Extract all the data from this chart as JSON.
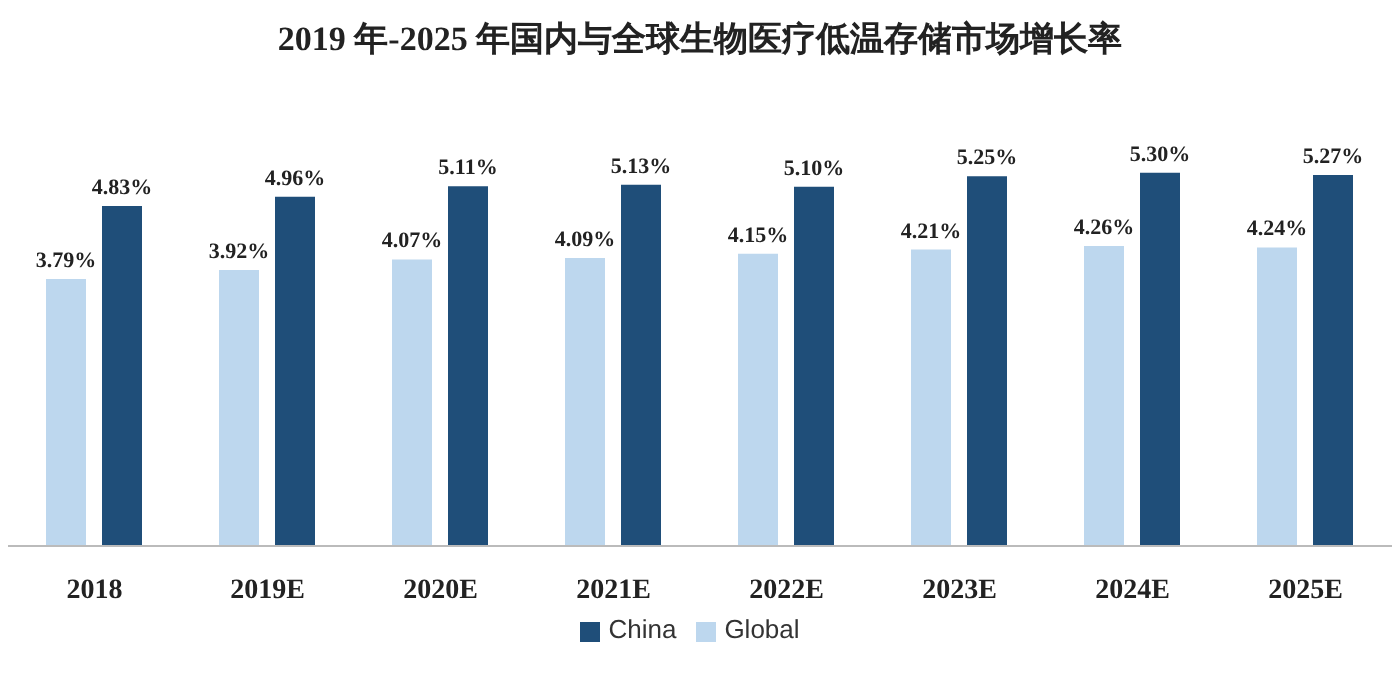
{
  "chart_data": {
    "type": "bar",
    "title": "2019 年-2025 年国内与全球生物医疗低温存储市场增长率",
    "categories": [
      "2018",
      "2019E",
      "2020E",
      "2021E",
      "2022E",
      "2023E",
      "2024E",
      "2025E"
    ],
    "series": [
      {
        "name": "Global",
        "color": "#bdd7ee",
        "values": [
          3.79,
          3.92,
          4.07,
          4.09,
          4.15,
          4.21,
          4.26,
          4.24
        ],
        "value_labels": [
          "3.79%",
          "3.92%",
          "4.07%",
          "4.09%",
          "4.15%",
          "4.21%",
          "4.26%",
          "4.24%"
        ]
      },
      {
        "name": "China",
        "color": "#1f4e79",
        "values": [
          4.83,
          4.96,
          5.11,
          5.13,
          5.1,
          5.25,
          5.3,
          5.27
        ],
        "value_labels": [
          "4.83%",
          "4.96%",
          "5.11%",
          "5.13%",
          "5.10%",
          "5.25%",
          "5.30%",
          "5.27%"
        ]
      }
    ],
    "legend": "bottom",
    "grid": false
  }
}
